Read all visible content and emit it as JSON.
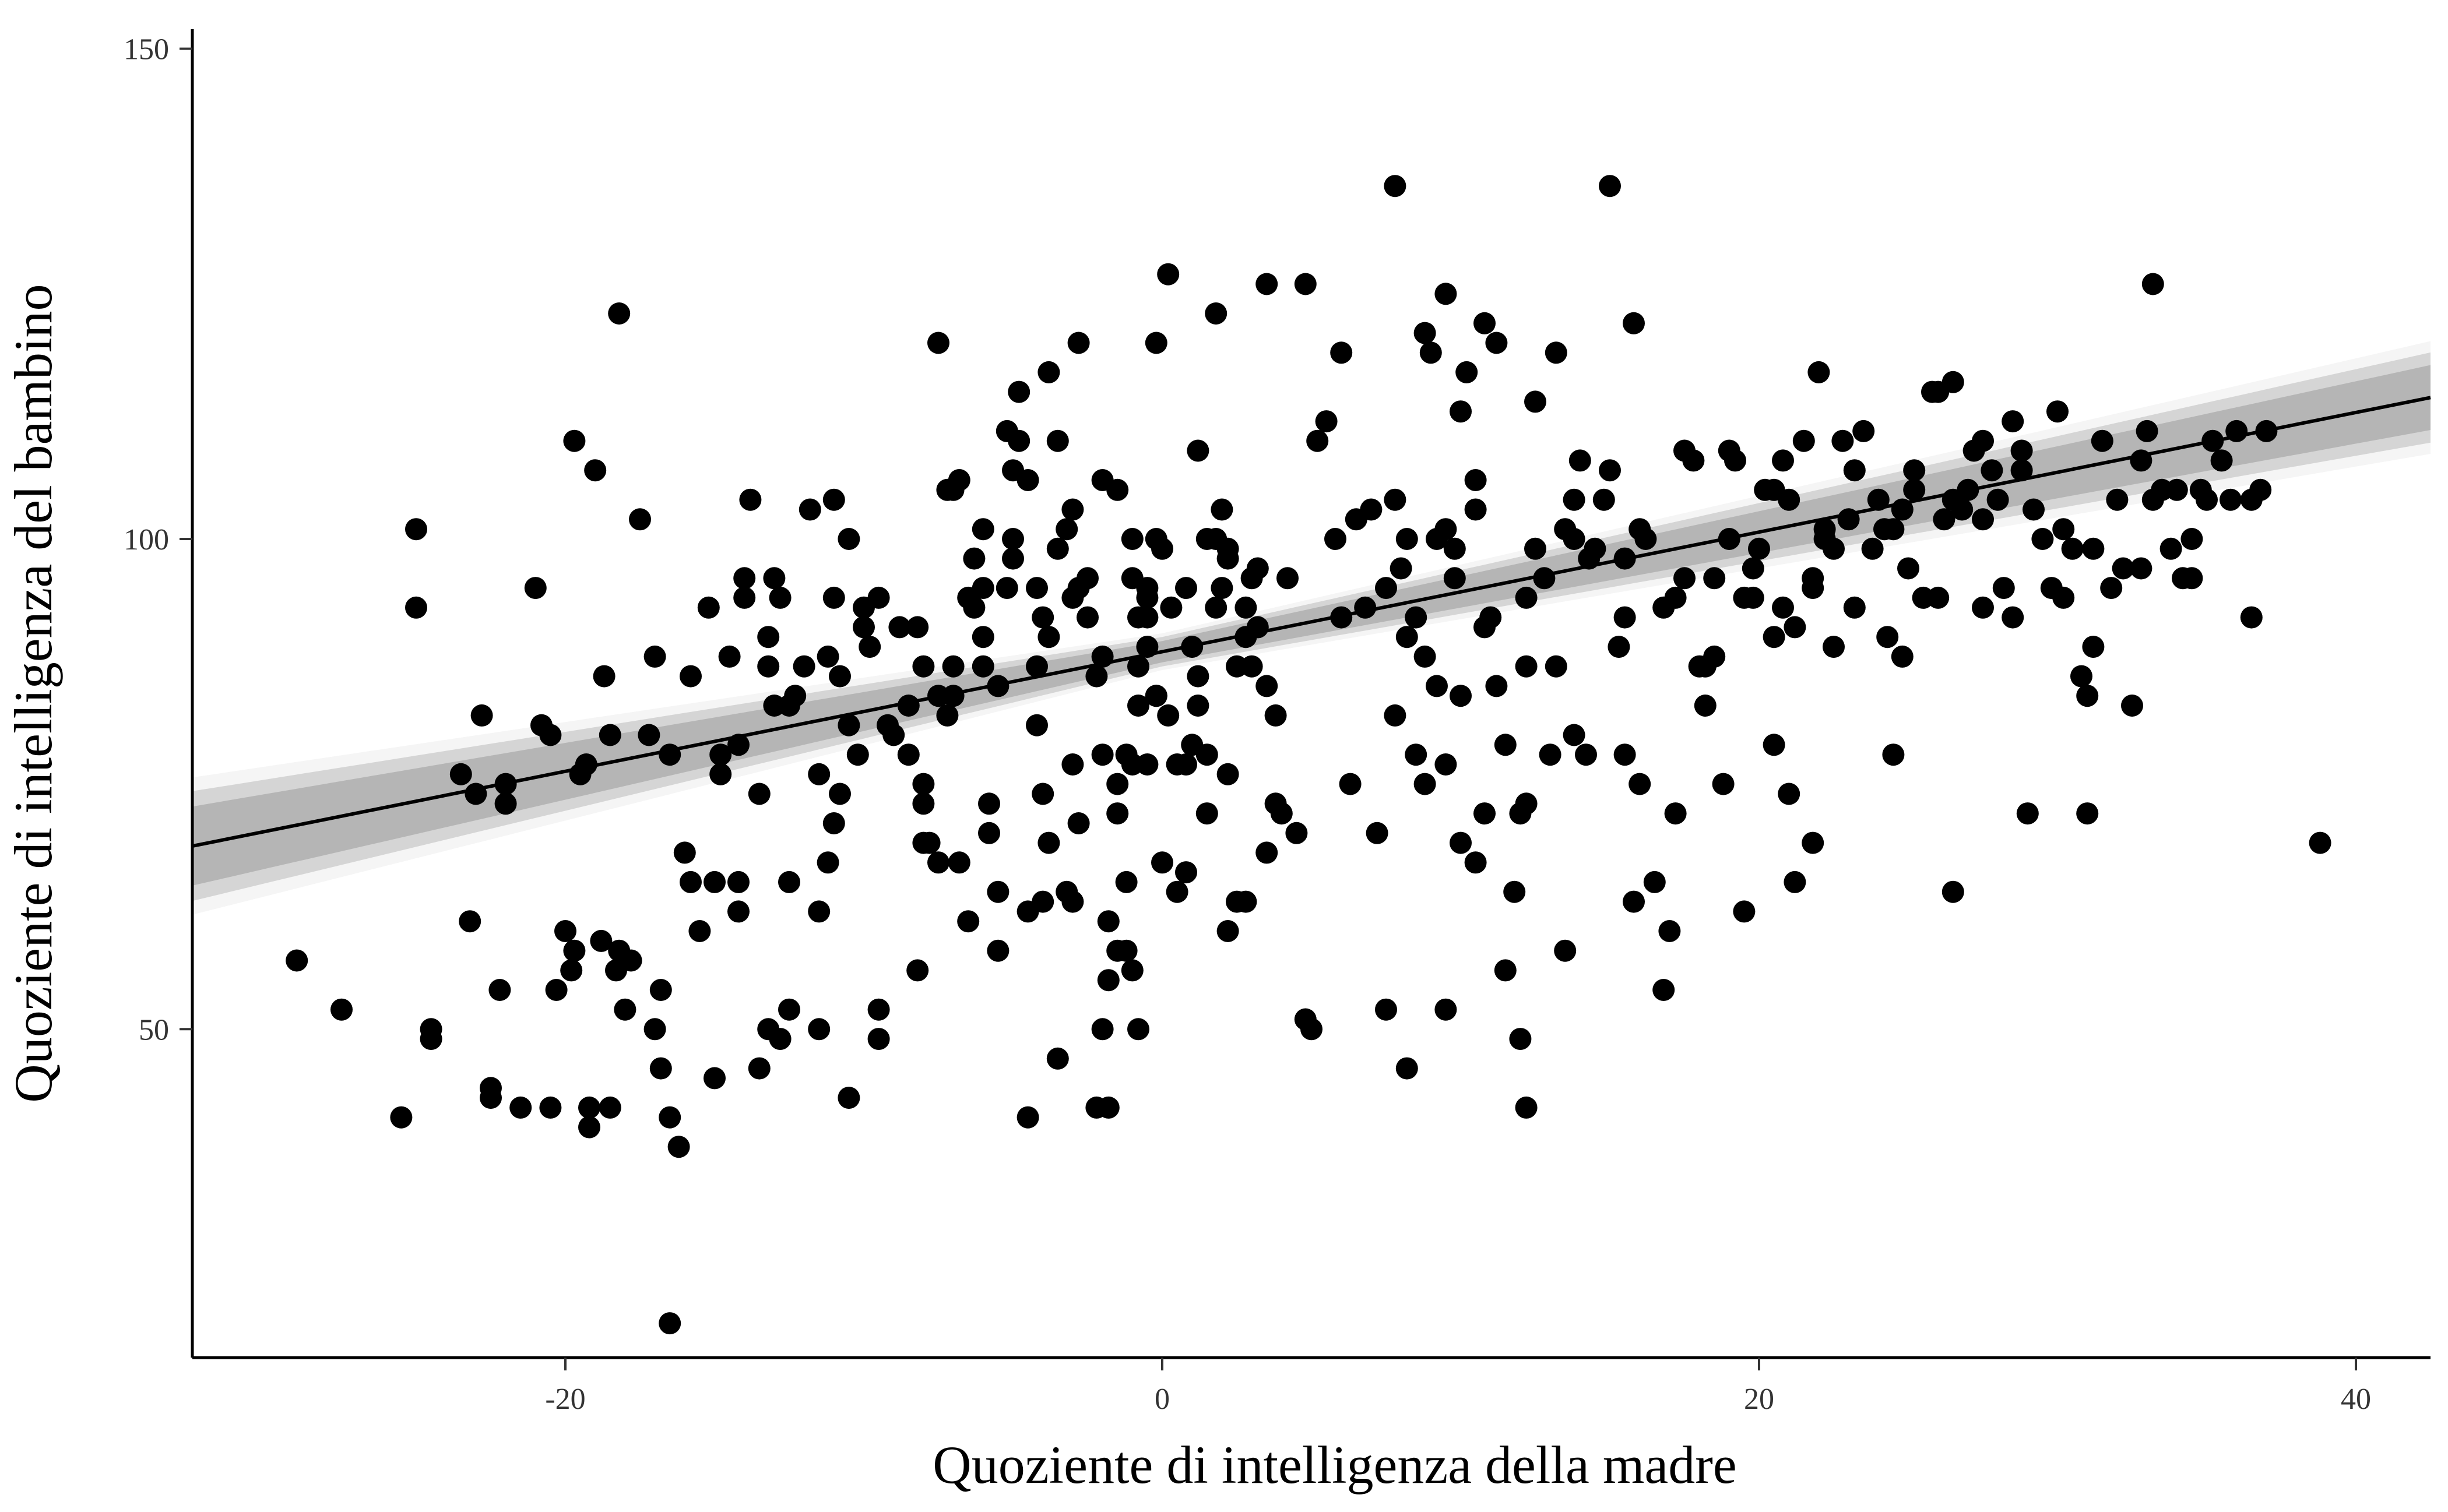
{
  "chart_data": {
    "type": "scatter",
    "xlabel": "Quoziente di intelligenza della madre",
    "ylabel": "Quoziente di intelligenza del bambino",
    "xlim": [
      -32.5,
      42.5
    ],
    "ylim": [
      16.5,
      152
    ],
    "x_ticks": [
      -20,
      0,
      20,
      40
    ],
    "x_tick_labels": [
      "-20",
      "0",
      "20",
      "40"
    ],
    "y_ticks": [
      50,
      100,
      150
    ],
    "y_tick_labels": [
      "50",
      "100",
      "150"
    ],
    "grid": false,
    "legend": "none",
    "regression_line": {
      "intercept": 88.5,
      "slope": 0.61
    },
    "uncertainty_band": {
      "at_x": [
        -32.5,
        0,
        42.5
      ],
      "half_width": [
        5.6,
        1.5,
        4.6
      ]
    },
    "points": [
      [
        -29,
        57
      ],
      [
        -27.5,
        52
      ],
      [
        -25.5,
        41
      ],
      [
        -25,
        101
      ],
      [
        -25,
        93
      ],
      [
        -24.5,
        50
      ],
      [
        -24.5,
        49
      ],
      [
        -23.5,
        76
      ],
      [
        -23.2,
        61
      ],
      [
        -23,
        74
      ],
      [
        -22.8,
        82
      ],
      [
        -22.5,
        44
      ],
      [
        -22.5,
        43
      ],
      [
        -22.2,
        54
      ],
      [
        -22,
        73
      ],
      [
        -22,
        75
      ],
      [
        -21.5,
        42
      ],
      [
        -21,
        95
      ],
      [
        -20.8,
        81
      ],
      [
        -20.5,
        42
      ],
      [
        -20.5,
        80
      ],
      [
        -20.3,
        54
      ],
      [
        -20,
        60
      ],
      [
        -19.8,
        56
      ],
      [
        -19.7,
        110
      ],
      [
        -19.7,
        58
      ],
      [
        -19.5,
        76
      ],
      [
        -19.3,
        77
      ],
      [
        -19.2,
        40
      ],
      [
        -19.2,
        42
      ],
      [
        -19,
        107
      ],
      [
        -18.8,
        59
      ],
      [
        -18.7,
        86
      ],
      [
        -18.5,
        42
      ],
      [
        -18.5,
        80
      ],
      [
        -18.3,
        56
      ],
      [
        -18.2,
        58
      ],
      [
        -18.2,
        123
      ],
      [
        -18,
        52
      ],
      [
        -17.8,
        57
      ],
      [
        -17.5,
        102
      ],
      [
        -17.2,
        80
      ],
      [
        -17,
        88
      ],
      [
        -17,
        50
      ],
      [
        -16.8,
        46
      ],
      [
        -16.8,
        54
      ],
      [
        -16.5,
        78
      ],
      [
        -16.5,
        41
      ],
      [
        -16.2,
        38
      ],
      [
        -16,
        68
      ],
      [
        -15.8,
        86
      ],
      [
        -15.8,
        65
      ],
      [
        -15.5,
        60
      ],
      [
        -15.2,
        93
      ],
      [
        -15,
        65
      ],
      [
        -15,
        45
      ],
      [
        -14.8,
        78
      ],
      [
        -14.8,
        76
      ],
      [
        -14.5,
        88
      ],
      [
        -14.2,
        79
      ],
      [
        -14.2,
        62
      ],
      [
        -14,
        96
      ],
      [
        -14,
        94
      ],
      [
        -13.8,
        104
      ],
      [
        -13.5,
        74
      ],
      [
        -13.5,
        46
      ],
      [
        -13.2,
        90
      ],
      [
        -13.2,
        87
      ],
      [
        -13,
        83
      ],
      [
        -13,
        96
      ],
      [
        -12.8,
        94
      ],
      [
        -12.5,
        65
      ],
      [
        -12.5,
        83
      ],
      [
        -12.3,
        84
      ],
      [
        -12,
        87
      ],
      [
        -11.8,
        103
      ],
      [
        -11.5,
        76
      ],
      [
        -11.5,
        50
      ],
      [
        -11.2,
        88
      ],
      [
        -11,
        94
      ],
      [
        -11,
        104
      ],
      [
        -10.8,
        86
      ],
      [
        -10.5,
        81
      ],
      [
        -10.5,
        100
      ],
      [
        -10.2,
        78
      ],
      [
        -10,
        91
      ],
      [
        -10,
        93
      ],
      [
        -9.8,
        89
      ],
      [
        -9.5,
        52
      ],
      [
        -9.5,
        49
      ],
      [
        -9.5,
        94
      ],
      [
        -9.2,
        81
      ],
      [
        -9,
        80
      ],
      [
        -8.8,
        91
      ],
      [
        -8.5,
        78
      ],
      [
        -8.2,
        91
      ],
      [
        -8,
        87
      ],
      [
        -8,
        75
      ],
      [
        -8,
        73
      ],
      [
        -7.5,
        67
      ],
      [
        -7.2,
        82
      ],
      [
        -7,
        87
      ],
      [
        -7,
        84
      ],
      [
        -6.8,
        67
      ],
      [
        -6.5,
        61
      ],
      [
        -6.3,
        98
      ],
      [
        -6,
        87
      ],
      [
        -6,
        90
      ],
      [
        -6,
        95
      ],
      [
        -5.8,
        73
      ],
      [
        -5.5,
        85
      ],
      [
        -5.5,
        58
      ],
      [
        -5.2,
        111
      ],
      [
        -5,
        100
      ],
      [
        -5,
        107
      ],
      [
        -4.8,
        110
      ],
      [
        -4.5,
        106
      ],
      [
        -4.5,
        62
      ],
      [
        -4.2,
        87
      ],
      [
        -4.2,
        95
      ],
      [
        -4,
        74
      ],
      [
        -4,
        92
      ],
      [
        -3.8,
        90
      ],
      [
        -3.8,
        117
      ],
      [
        -3.5,
        110
      ],
      [
        -3.2,
        101
      ],
      [
        -3,
        94
      ],
      [
        -3,
        103
      ],
      [
        -2.8,
        120
      ],
      [
        -2.8,
        71
      ],
      [
        -2.5,
        96
      ],
      [
        -2.2,
        86
      ],
      [
        -2,
        88
      ],
      [
        -2,
        106
      ],
      [
        -1.8,
        61
      ],
      [
        -1.5,
        105
      ],
      [
        -1.2,
        65
      ],
      [
        -1,
        96
      ],
      [
        -1,
        100
      ],
      [
        -0.8,
        87
      ],
      [
        -0.5,
        77
      ],
      [
        -0.2,
        100
      ],
      [
        0,
        99
      ],
      [
        -0.5,
        94
      ],
      [
        -0.8,
        92
      ],
      [
        -0.5,
        89
      ],
      [
        0.3,
        93
      ],
      [
        0.8,
        95
      ],
      [
        1,
        89
      ],
      [
        1.2,
        86
      ],
      [
        1.5,
        78
      ],
      [
        1.8,
        100
      ],
      [
        2,
        103
      ],
      [
        2.2,
        98
      ],
      [
        2.5,
        87
      ],
      [
        2.8,
        93
      ],
      [
        3,
        96
      ],
      [
        3.2,
        91
      ],
      [
        -8.5,
        83
      ],
      [
        -8.2,
        56
      ],
      [
        -8,
        69
      ],
      [
        -7.8,
        69
      ],
      [
        -7.5,
        120
      ],
      [
        -7.5,
        84
      ],
      [
        -7.2,
        105
      ],
      [
        -7,
        105
      ],
      [
        -6.8,
        106
      ],
      [
        -6.5,
        94
      ],
      [
        -6.3,
        93
      ],
      [
        -6,
        101
      ],
      [
        -5.8,
        70
      ],
      [
        -5.5,
        64
      ],
      [
        -5.2,
        95
      ],
      [
        -5,
        98
      ],
      [
        -4.8,
        115
      ],
      [
        -4.5,
        41
      ],
      [
        -4.2,
        81
      ],
      [
        -4,
        63
      ],
      [
        -3.8,
        69
      ],
      [
        -3.5,
        99
      ],
      [
        -3.5,
        47
      ],
      [
        -3.2,
        64
      ],
      [
        -3,
        77
      ],
      [
        -3,
        63
      ],
      [
        -2.8,
        95
      ],
      [
        -2.5,
        92
      ],
      [
        -2,
        78
      ],
      [
        -1.8,
        55
      ],
      [
        -1.5,
        58
      ],
      [
        -1.2,
        58
      ],
      [
        -1,
        56
      ],
      [
        -0.8,
        50
      ],
      [
        -0.5,
        95
      ],
      [
        -0.2,
        84
      ],
      [
        0,
        67
      ],
      [
        0.2,
        82
      ],
      [
        0.5,
        77
      ],
      [
        0.8,
        66
      ],
      [
        1.2,
        109
      ],
      [
        1.5,
        100
      ],
      [
        1.8,
        93
      ],
      [
        2,
        95
      ],
      [
        2.2,
        76
      ],
      [
        2.5,
        63
      ],
      [
        2.8,
        90
      ],
      [
        3,
        87
      ],
      [
        3.2,
        97
      ],
      [
        3.5,
        85
      ],
      [
        3.8,
        82
      ],
      [
        4,
        72
      ],
      [
        4.2,
        96
      ],
      [
        4.5,
        70
      ],
      [
        4.8,
        51
      ],
      [
        5,
        50
      ],
      [
        5.2,
        110
      ],
      [
        5.5,
        112
      ],
      [
        5.8,
        100
      ],
      [
        6,
        92
      ],
      [
        6.3,
        75
      ],
      [
        6.5,
        102
      ],
      [
        6.8,
        93
      ],
      [
        7,
        103
      ],
      [
        7.2,
        70
      ],
      [
        7.5,
        95
      ],
      [
        7.8,
        82
      ],
      [
        8,
        97
      ],
      [
        8.2,
        100
      ],
      [
        8.5,
        92
      ],
      [
        8.8,
        121
      ],
      [
        9,
        119
      ],
      [
        9.2,
        85
      ],
      [
        9.5,
        101
      ],
      [
        9.8,
        99
      ],
      [
        10,
        113
      ],
      [
        10.2,
        117
      ],
      [
        10.5,
        106
      ],
      [
        10.8,
        72
      ],
      [
        11,
        92
      ],
      [
        11.2,
        85
      ],
      [
        11.5,
        56
      ],
      [
        11.8,
        64
      ],
      [
        12,
        72
      ],
      [
        12.2,
        87
      ],
      [
        12.5,
        99
      ],
      [
        12.8,
        96
      ],
      [
        13,
        78
      ],
      [
        13.2,
        87
      ],
      [
        13.5,
        101
      ],
      [
        13.8,
        100
      ],
      [
        14,
        108
      ],
      [
        14.3,
        98
      ],
      [
        14.5,
        99
      ],
      [
        14.8,
        104
      ],
      [
        15,
        107
      ],
      [
        15.3,
        89
      ],
      [
        15.5,
        92
      ],
      [
        15.8,
        63
      ],
      [
        16,
        101
      ],
      [
        16.2,
        100
      ],
      [
        16.5,
        65
      ],
      [
        16.8,
        54
      ],
      [
        17,
        60
      ],
      [
        17.2,
        72
      ],
      [
        17.5,
        96
      ],
      [
        17.8,
        108
      ],
      [
        18,
        87
      ],
      [
        18.2,
        83
      ],
      [
        18.5,
        96
      ],
      [
        18.8,
        75
      ],
      [
        19,
        100
      ],
      [
        19.2,
        108
      ],
      [
        19.5,
        62
      ],
      [
        19.8,
        97
      ],
      [
        20,
        99
      ],
      [
        20.2,
        105
      ],
      [
        20.5,
        79
      ],
      [
        20.8,
        108
      ],
      [
        21,
        104
      ],
      [
        21.2,
        91
      ],
      [
        21.5,
        110
      ],
      [
        21.8,
        96
      ],
      [
        22,
        117
      ],
      [
        22.2,
        100
      ],
      [
        22.5,
        89
      ],
      [
        22.8,
        110
      ],
      [
        23,
        102
      ],
      [
        23.2,
        107
      ],
      [
        23.5,
        111
      ],
      [
        23.8,
        99
      ],
      [
        24,
        104
      ],
      [
        24.3,
        90
      ],
      [
        24.5,
        101
      ],
      [
        24.8,
        88
      ],
      [
        25,
        97
      ],
      [
        25.2,
        107
      ],
      [
        25.5,
        94
      ],
      [
        25.8,
        115
      ],
      [
        26,
        115
      ],
      [
        26.2,
        102
      ],
      [
        26.5,
        116
      ],
      [
        26.8,
        103
      ],
      [
        27,
        105
      ],
      [
        27.2,
        109
      ],
      [
        27.5,
        110
      ],
      [
        27.8,
        107
      ],
      [
        28,
        104
      ],
      [
        28.2,
        95
      ],
      [
        28.5,
        112
      ],
      [
        28.8,
        109
      ],
      [
        29,
        72
      ],
      [
        29.2,
        103
      ],
      [
        29.5,
        100
      ],
      [
        29.8,
        95
      ],
      [
        30,
        113
      ],
      [
        30.2,
        101
      ],
      [
        30.5,
        99
      ],
      [
        30.8,
        86
      ],
      [
        31,
        84
      ],
      [
        31.2,
        89
      ],
      [
        31.5,
        110
      ],
      [
        31.8,
        95
      ],
      [
        32,
        104
      ],
      [
        32.2,
        97
      ],
      [
        32.5,
        83
      ],
      [
        32.8,
        108
      ],
      [
        33,
        111
      ],
      [
        33.2,
        126
      ],
      [
        33.5,
        105
      ],
      [
        33.8,
        99
      ],
      [
        34,
        105
      ],
      [
        34.2,
        96
      ],
      [
        34.5,
        96
      ],
      [
        34.8,
        105
      ],
      [
        35,
        104
      ],
      [
        35.2,
        110
      ],
      [
        35.5,
        108
      ],
      [
        36,
        111
      ],
      [
        36.5,
        104
      ],
      [
        37,
        111
      ],
      [
        36.8,
        105
      ],
      [
        0.2,
        127
      ],
      [
        -0.2,
        120
      ],
      [
        1.8,
        123
      ],
      [
        3.5,
        126
      ],
      [
        4.8,
        126
      ],
      [
        6,
        119
      ],
      [
        7.8,
        136
      ],
      [
        9.5,
        125
      ],
      [
        10.8,
        122
      ],
      [
        11.2,
        120
      ],
      [
        12.5,
        114
      ],
      [
        13.2,
        119
      ],
      [
        15,
        136
      ],
      [
        15.8,
        122
      ],
      [
        17.5,
        109
      ],
      [
        19,
        109
      ],
      [
        20.5,
        105
      ],
      [
        22.2,
        101
      ],
      [
        24.8,
        103
      ],
      [
        26,
        94
      ],
      [
        7.8,
        104
      ],
      [
        9.2,
        100
      ],
      [
        9.8,
        96
      ],
      [
        10.5,
        103
      ],
      [
        8.2,
        90
      ],
      [
        8.8,
        88
      ],
      [
        9.5,
        77
      ],
      [
        10,
        84
      ],
      [
        10.8,
        91
      ],
      [
        12.2,
        94
      ],
      [
        13.8,
        104
      ],
      [
        15.5,
        98
      ],
      [
        16.8,
        93
      ],
      [
        17.2,
        94
      ],
      [
        18.2,
        87
      ],
      [
        19.5,
        94
      ],
      [
        20.8,
        93
      ],
      [
        21.8,
        95
      ],
      [
        22.5,
        99
      ],
      [
        23.2,
        93
      ],
      [
        24.2,
        101
      ],
      [
        25.2,
        105
      ],
      [
        26.5,
        104
      ],
      [
        27.5,
        102
      ],
      [
        28.8,
        107
      ],
      [
        30.2,
        94
      ],
      [
        31.2,
        99
      ],
      [
        32.8,
        97
      ],
      [
        33.2,
        104
      ],
      [
        34.5,
        100
      ],
      [
        35.8,
        104
      ],
      [
        36.5,
        92
      ],
      [
        38.8,
        69
      ],
      [
        31,
        72
      ],
      [
        27.5,
        93
      ],
      [
        28.5,
        92
      ],
      [
        24.5,
        78
      ],
      [
        26.5,
        64
      ],
      [
        21,
        74
      ],
      [
        21.2,
        65
      ],
      [
        21.8,
        69
      ],
      [
        20.5,
        90
      ],
      [
        19.8,
        94
      ],
      [
        18.5,
        88
      ],
      [
        16,
        75
      ],
      [
        15.5,
        78
      ],
      [
        14.2,
        78
      ],
      [
        13.8,
        80
      ],
      [
        12.2,
        73
      ],
      [
        11.5,
        79
      ],
      [
        9.5,
        52
      ],
      [
        8.2,
        46
      ],
      [
        7.5,
        52
      ],
      [
        8.5,
        78
      ],
      [
        8.8,
        75
      ],
      [
        10,
        69
      ],
      [
        10.5,
        67
      ],
      [
        12,
        49
      ],
      [
        12.2,
        42
      ],
      [
        13.5,
        58
      ],
      [
        -16.5,
        20
      ],
      [
        -14.2,
        65
      ],
      [
        -13.2,
        50
      ],
      [
        -12.8,
        49
      ],
      [
        -12.5,
        52
      ],
      [
        -10.5,
        43
      ],
      [
        -11.5,
        62
      ],
      [
        -11.2,
        67
      ],
      [
        -11,
        71
      ],
      [
        -10.8,
        74
      ],
      [
        -2.2,
        42
      ],
      [
        -1.8,
        42
      ],
      [
        -2,
        50
      ],
      [
        -1.5,
        75
      ],
      [
        -1,
        77
      ],
      [
        -0.5,
        92
      ],
      [
        0.5,
        64
      ],
      [
        1.5,
        72
      ],
      [
        2.2,
        60
      ],
      [
        2.8,
        63
      ],
      [
        3.5,
        68
      ],
      [
        3.8,
        73
      ],
      [
        2.2,
        99
      ],
      [
        1.2,
        83
      ],
      [
        1,
        79
      ],
      [
        0.8,
        77
      ],
      [
        -0.2,
        84
      ],
      [
        -0.8,
        83
      ],
      [
        -1.2,
        78
      ],
      [
        -1.5,
        72
      ]
    ]
  }
}
